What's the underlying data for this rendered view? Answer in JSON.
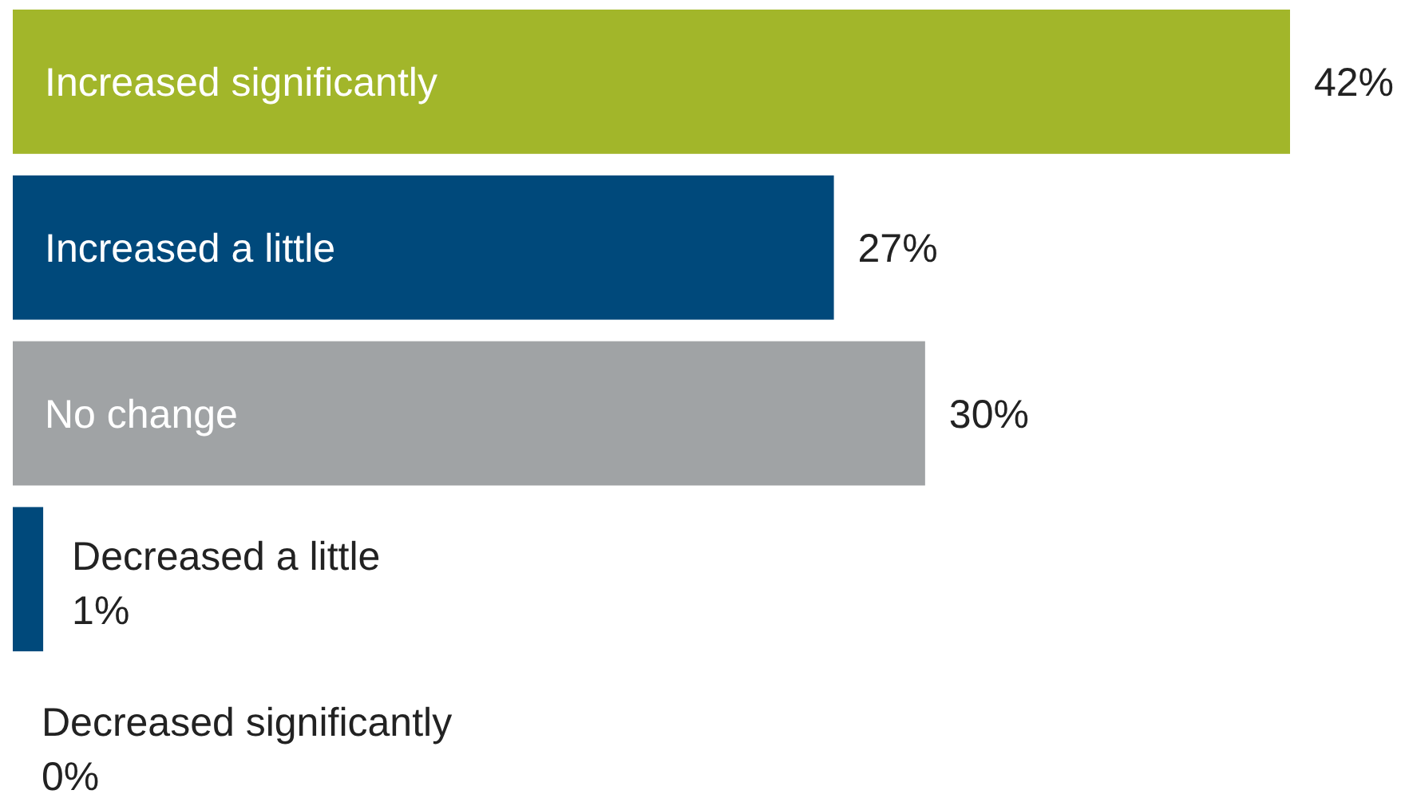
{
  "chart_data": {
    "type": "bar",
    "orientation": "horizontal",
    "categories": [
      "Increased significantly",
      "Increased a little",
      "No change",
      "Decreased a little",
      "Decreased significantly"
    ],
    "values": [
      42,
      27,
      30,
      1,
      0
    ],
    "colors": [
      "#a2b62a",
      "#00497b",
      "#a0a3a5",
      "#00497b",
      "#00497b"
    ],
    "value_labels": [
      "42%",
      "27%",
      "30%",
      "1%",
      "0%"
    ]
  }
}
